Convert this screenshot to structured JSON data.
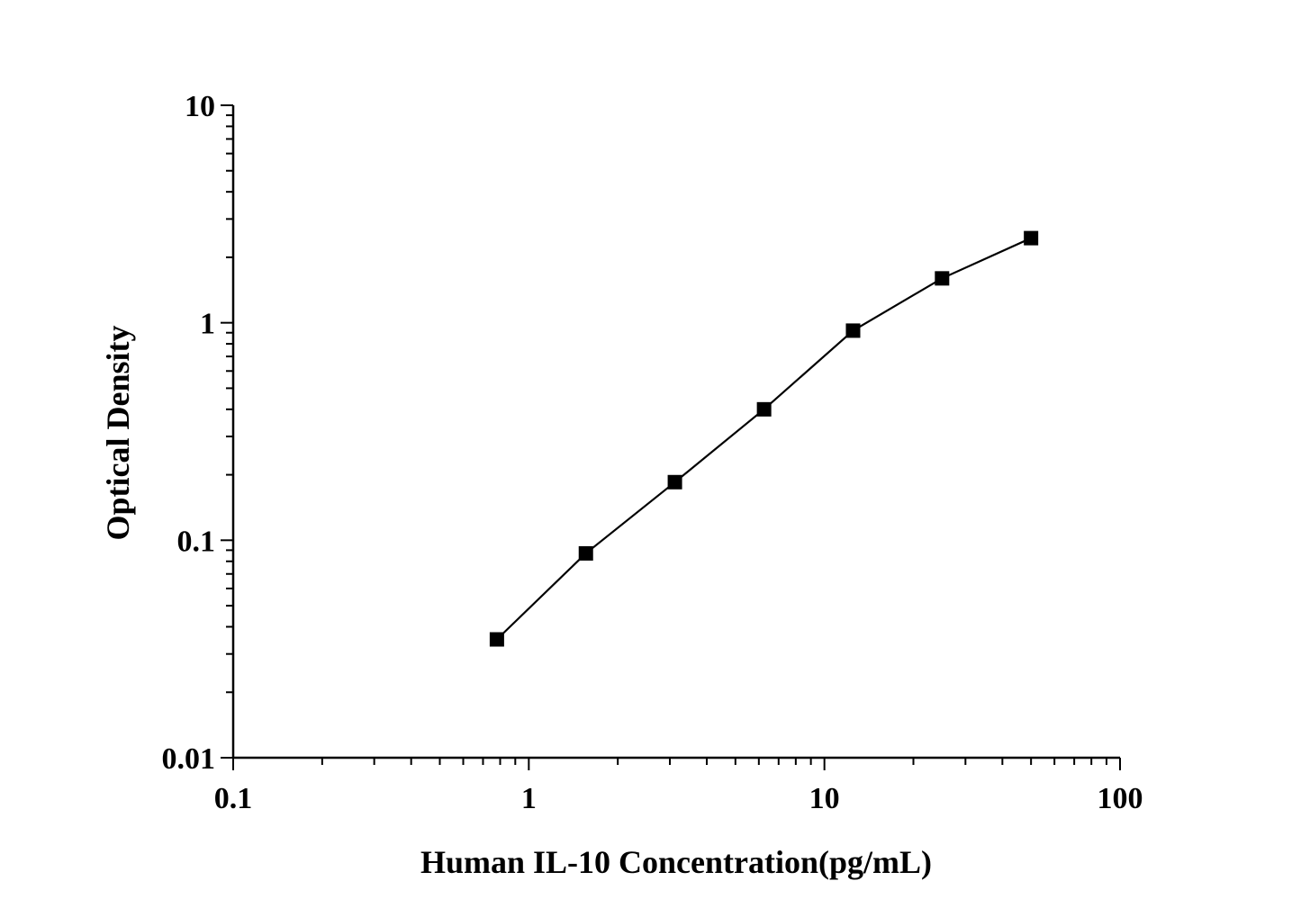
{
  "chart_data": {
    "type": "scatter",
    "title": "",
    "xlabel": "Human IL-10 Concentration(pg/mL)",
    "ylabel": "Optical Density",
    "xscale": "log",
    "yscale": "log",
    "xlim": [
      0.1,
      100
    ],
    "ylim": [
      0.01,
      10
    ],
    "x_ticks": [
      0.1,
      1,
      10,
      100
    ],
    "x_tick_labels": [
      "0.1",
      "1",
      "10",
      "100"
    ],
    "y_ticks": [
      0.01,
      0.1,
      1,
      10
    ],
    "y_tick_labels": [
      "0.01",
      "0.1",
      "1",
      "10"
    ],
    "grid": false,
    "series": [
      {
        "marker": "square",
        "line": "connected",
        "color": "#000000",
        "x": [
          0.78,
          1.56,
          3.12,
          6.25,
          12.5,
          25,
          50
        ],
        "y": [
          0.035,
          0.087,
          0.185,
          0.4,
          0.92,
          1.6,
          2.45
        ]
      }
    ]
  }
}
